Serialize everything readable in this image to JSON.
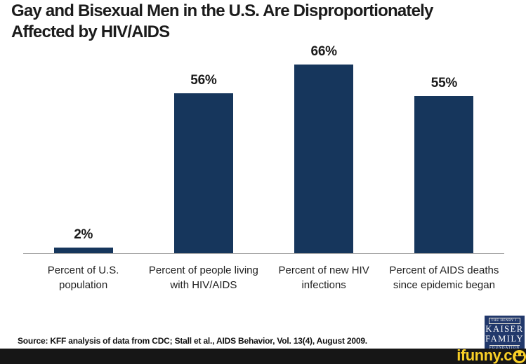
{
  "title_lines": [
    "Gay and Bisexual Men in the U.S. Are Disproportionately",
    "Affected by HIV/AIDS"
  ],
  "chart_data": {
    "type": "bar",
    "title": "Gay and Bisexual Men in the U.S. Are Disproportionately Affected by HIV/AIDS",
    "categories": [
      "Percent of U.S. population",
      "Percent of people living with HIV/AIDS",
      "Percent of new HIV infections",
      "Percent of AIDS deaths since epidemic began"
    ],
    "values": [
      2,
      56,
      66,
      55
    ],
    "value_labels": [
      "2%",
      "56%",
      "66%",
      "55%"
    ],
    "xlabel": "",
    "ylabel": "",
    "ylim": [
      0,
      70
    ],
    "grid": false,
    "legend": false,
    "bar_color": "#16365c",
    "axis_line_color": "#a6a6a6"
  },
  "source": "Source: KFF analysis of data from CDC; Stall et al., AIDS Behavior, Vol. 13(4), August 2009.",
  "logo": {
    "line1": "THE HENRY J.",
    "line2": "KAISER",
    "line3": "FAMILY",
    "line4": "FOUNDATION",
    "bg_color": "#21386b"
  },
  "watermark": {
    "text": "ifunny.c",
    "smiley_icon": "smiley-face",
    "text_color": "#f8cf27",
    "bar_color": "#161616"
  }
}
